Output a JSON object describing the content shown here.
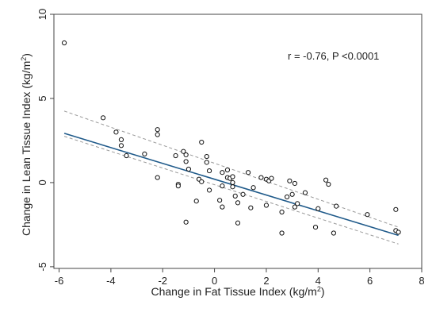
{
  "chart_data": {
    "type": "scatter",
    "xlabel": "Change in Fat Tissue Index (kg/m",
    "xlabel_sup": "2",
    "xlabel_end": ")",
    "ylabel": "Change in Lean Tissue Index (kg/m",
    "ylabel_sup": "2",
    "ylabel_end": ")",
    "annotation": "r = -0.76, P <0.0001",
    "xlim": [
      -6.2,
      8.0
    ],
    "ylim": [
      -5.1,
      10.0
    ],
    "x_ticks": [
      -6,
      -4,
      -2,
      0,
      2,
      4,
      6,
      8
    ],
    "y_ticks": [
      -5,
      0,
      5,
      10
    ],
    "grid": false,
    "colors": {
      "points": "#111111",
      "regression_line": "#1f5a8a",
      "confidence_band": "#999999",
      "frame": "#444444"
    },
    "points": [
      {
        "x": -5.8,
        "y": 8.3
      },
      {
        "x": -4.3,
        "y": 3.85
      },
      {
        "x": -3.8,
        "y": 3.0
      },
      {
        "x": -3.6,
        "y": 2.55
      },
      {
        "x": -3.6,
        "y": 2.2
      },
      {
        "x": -3.4,
        "y": 1.6
      },
      {
        "x": -2.7,
        "y": 1.7
      },
      {
        "x": -2.2,
        "y": 3.15
      },
      {
        "x": -2.2,
        "y": 2.85
      },
      {
        "x": -2.2,
        "y": 0.3
      },
      {
        "x": -1.5,
        "y": 1.6
      },
      {
        "x": -1.4,
        "y": -0.1
      },
      {
        "x": -1.4,
        "y": -0.2
      },
      {
        "x": -1.2,
        "y": 1.85
      },
      {
        "x": -1.1,
        "y": 1.65
      },
      {
        "x": -1.1,
        "y": 1.25
      },
      {
        "x": -1.0,
        "y": 0.8
      },
      {
        "x": -1.1,
        "y": -2.35
      },
      {
        "x": -0.7,
        "y": -1.1
      },
      {
        "x": -0.6,
        "y": 0.2
      },
      {
        "x": -0.5,
        "y": 2.4
      },
      {
        "x": -0.5,
        "y": 0.05
      },
      {
        "x": -0.3,
        "y": 1.55
      },
      {
        "x": -0.3,
        "y": 1.2
      },
      {
        "x": -0.2,
        "y": 0.7
      },
      {
        "x": -0.2,
        "y": -0.45
      },
      {
        "x": 0.2,
        "y": -1.05
      },
      {
        "x": 0.3,
        "y": 0.6
      },
      {
        "x": 0.3,
        "y": -0.2
      },
      {
        "x": 0.3,
        "y": -1.45
      },
      {
        "x": 0.5,
        "y": 0.75
      },
      {
        "x": 0.5,
        "y": 0.3
      },
      {
        "x": 0.6,
        "y": 0.25
      },
      {
        "x": 0.7,
        "y": 0.35
      },
      {
        "x": 0.7,
        "y": 0.0
      },
      {
        "x": 0.7,
        "y": -0.25
      },
      {
        "x": 0.8,
        "y": -0.8
      },
      {
        "x": 0.9,
        "y": -1.2
      },
      {
        "x": 0.9,
        "y": -2.4
      },
      {
        "x": 1.1,
        "y": -0.7
      },
      {
        "x": 1.3,
        "y": 0.6
      },
      {
        "x": 1.4,
        "y": -1.5
      },
      {
        "x": 1.5,
        "y": -0.3
      },
      {
        "x": 1.8,
        "y": 0.3
      },
      {
        "x": 2.0,
        "y": -1.35
      },
      {
        "x": 2.0,
        "y": 0.2
      },
      {
        "x": 2.1,
        "y": 0.1
      },
      {
        "x": 2.2,
        "y": 0.25
      },
      {
        "x": 2.6,
        "y": -1.75
      },
      {
        "x": 2.6,
        "y": -3.0
      },
      {
        "x": 2.8,
        "y": -0.85
      },
      {
        "x": 2.9,
        "y": 0.1
      },
      {
        "x": 3.0,
        "y": -0.7
      },
      {
        "x": 3.1,
        "y": -1.45
      },
      {
        "x": 3.1,
        "y": -0.05
      },
      {
        "x": 3.2,
        "y": -1.25
      },
      {
        "x": 3.5,
        "y": -0.6
      },
      {
        "x": 3.9,
        "y": -2.65
      },
      {
        "x": 4.0,
        "y": -1.55
      },
      {
        "x": 4.3,
        "y": 0.15
      },
      {
        "x": 4.4,
        "y": -0.1
      },
      {
        "x": 4.6,
        "y": -3.0
      },
      {
        "x": 4.7,
        "y": -1.4
      },
      {
        "x": 5.9,
        "y": -1.9
      },
      {
        "x": 7.0,
        "y": -1.6
      },
      {
        "x": 7.0,
        "y": -2.85
      },
      {
        "x": 7.1,
        "y": -2.95
      }
    ],
    "regression": {
      "intercept": 0.2,
      "slope": -0.47,
      "x_range": [
        -5.8,
        7.1
      ],
      "ci_upper_y": [
        4.25,
        -2.65
      ],
      "ci_lower_y": [
        2.75,
        -3.65
      ]
    }
  }
}
